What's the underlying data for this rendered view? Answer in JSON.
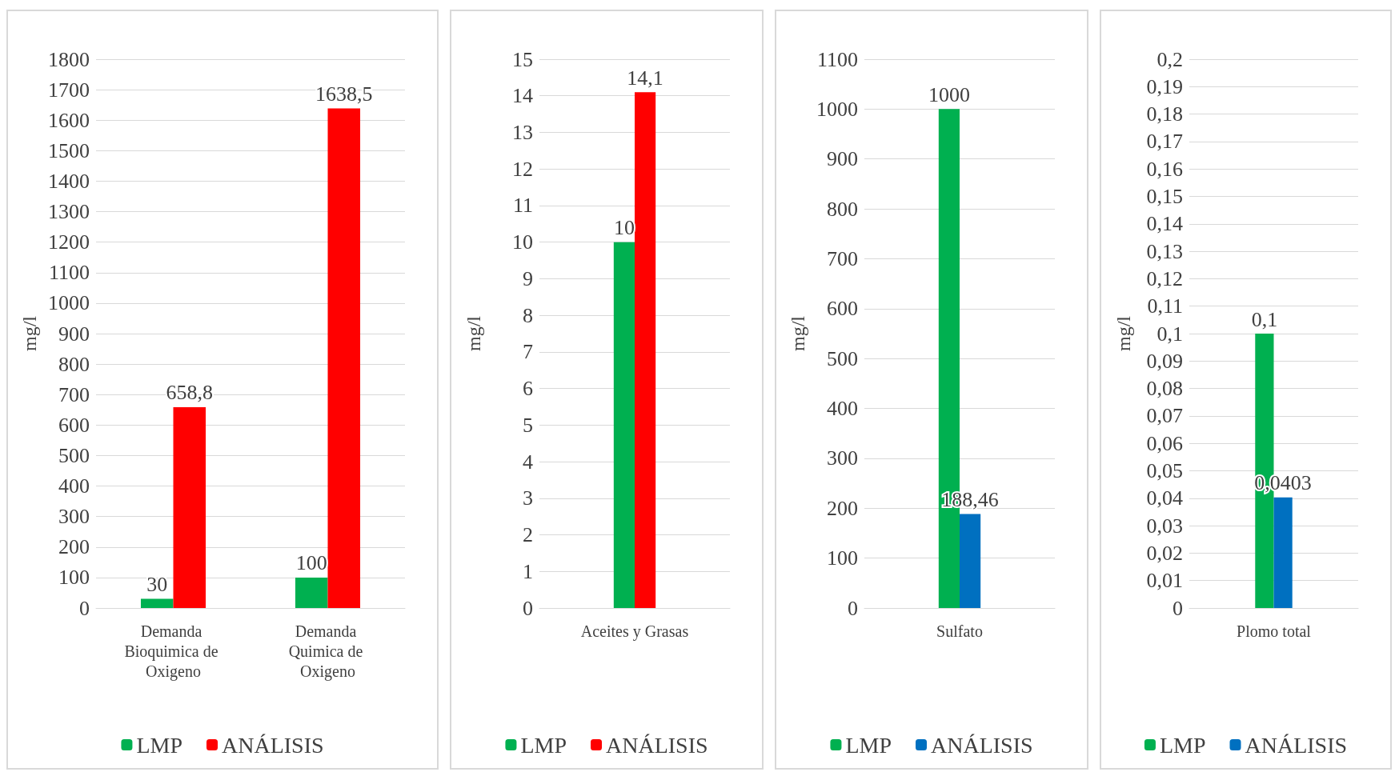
{
  "chart_data": [
    {
      "type": "bar",
      "categories": [
        "Demanda Bioquimica de Oxigeno",
        "Demanda Quimica de Oxigeno"
      ],
      "series": [
        {
          "name": "LMP",
          "color": "#00b050",
          "values": [
            30,
            100
          ],
          "value_labels": [
            "30",
            "100"
          ]
        },
        {
          "name": "ANÁLISIS",
          "color": "#ff0000",
          "values": [
            658.8,
            1638.5
          ],
          "value_labels": [
            "658,8",
            "1638,5"
          ]
        }
      ],
      "ylabel": "mg/l",
      "ylim": [
        0,
        1800
      ],
      "yticks": [
        0,
        100,
        200,
        300,
        400,
        500,
        600,
        700,
        800,
        900,
        1000,
        1100,
        1200,
        1300,
        1400,
        1500,
        1600,
        1700,
        1800
      ],
      "grid": "y",
      "legend": "bottom"
    },
    {
      "type": "bar",
      "categories": [
        "Aceites y Grasas"
      ],
      "series": [
        {
          "name": "LMP",
          "color": "#00b050",
          "values": [
            10
          ],
          "value_labels": [
            "10"
          ]
        },
        {
          "name": "ANÁLISIS",
          "color": "#ff0000",
          "values": [
            14.1
          ],
          "value_labels": [
            "14,1"
          ]
        }
      ],
      "ylabel": "mg/l",
      "ylim": [
        0,
        15
      ],
      "yticks": [
        0,
        1,
        2,
        3,
        4,
        5,
        6,
        7,
        8,
        9,
        10,
        11,
        12,
        13,
        14,
        15
      ],
      "grid": "y",
      "legend": "bottom"
    },
    {
      "type": "bar",
      "categories": [
        "Sulfato"
      ],
      "series": [
        {
          "name": "LMP",
          "color": "#00b050",
          "values": [
            1000
          ],
          "value_labels": [
            "1000"
          ]
        },
        {
          "name": "ANÁLISIS",
          "color": "#0070c0",
          "values": [
            188.46
          ],
          "value_labels": [
            "188,46"
          ]
        }
      ],
      "ylabel": "mg/l",
      "ylim": [
        0,
        1100
      ],
      "yticks": [
        0,
        100,
        200,
        300,
        400,
        500,
        600,
        700,
        800,
        900,
        1000,
        1100
      ],
      "grid": "y",
      "legend": "bottom"
    },
    {
      "type": "bar",
      "categories": [
        "Plomo total"
      ],
      "series": [
        {
          "name": "LMP",
          "color": "#00b050",
          "values": [
            0.1
          ],
          "value_labels": [
            "0,1"
          ]
        },
        {
          "name": "ANÁLISIS",
          "color": "#0070c0",
          "values": [
            0.0403
          ],
          "value_labels": [
            "0,0403"
          ]
        }
      ],
      "ylabel": "mg/l",
      "ylim": [
        0,
        0.2
      ],
      "yticks": [
        0,
        {
          "value": 0.01,
          "label": "0,01"
        },
        {
          "value": 0.02,
          "label": "0,02"
        },
        {
          "value": 0.03,
          "label": "0,03"
        },
        {
          "value": 0.04,
          "label": "0,04"
        },
        {
          "value": 0.05,
          "label": "0,05"
        },
        {
          "value": 0.06,
          "label": "0,06"
        },
        {
          "value": 0.07,
          "label": "0,07"
        },
        {
          "value": 0.08,
          "label": "0,08"
        },
        {
          "value": 0.09,
          "label": "0,09"
        },
        {
          "value": 0.1,
          "label": "0,1"
        },
        {
          "value": 0.11,
          "label": "0,11"
        },
        {
          "value": 0.12,
          "label": "0,12"
        },
        {
          "value": 0.13,
          "label": "0,13"
        },
        {
          "value": 0.14,
          "label": "0,14"
        },
        {
          "value": 0.15,
          "label": "0,15"
        },
        {
          "value": 0.16,
          "label": "0,16"
        },
        {
          "value": 0.17,
          "label": "0,17"
        },
        {
          "value": 0.18,
          "label": "0,18"
        },
        {
          "value": 0.19,
          "label": "0,19"
        },
        {
          "value": 0.2,
          "label": "0,2"
        }
      ],
      "grid": "y",
      "legend": "bottom"
    }
  ]
}
